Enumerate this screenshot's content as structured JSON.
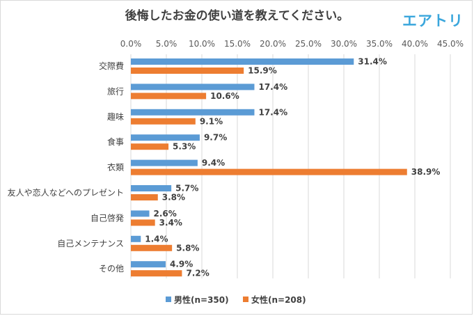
{
  "title": "後悔したお金の使い道を教えてください。",
  "brand": "エアトリ",
  "colors": {
    "male": "#5b9bd5",
    "female": "#ed7d31",
    "grid": "#d9d9d9"
  },
  "chart_data": {
    "type": "bar",
    "orientation": "horizontal",
    "title": "後悔したお金の使い道を教えてください。",
    "categories": [
      "交際費",
      "旅行",
      "趣味",
      "食事",
      "衣類",
      "友人や恋人などへのプレゼント",
      "自己啓発",
      "自己メンテナンス",
      "その他"
    ],
    "series": [
      {
        "name": "男性(n=350)",
        "values": [
          31.4,
          17.4,
          17.4,
          9.7,
          9.4,
          5.7,
          2.6,
          1.4,
          4.9
        ],
        "labels": [
          "31.4%",
          "17.4%",
          "17.4%",
          "9.7%",
          "9.4%",
          "5.7%",
          "2.6%",
          "1.4%",
          "4.9%"
        ]
      },
      {
        "name": "女性(n=208)",
        "values": [
          15.9,
          10.6,
          9.1,
          5.3,
          38.9,
          3.8,
          3.4,
          5.8,
          7.2
        ],
        "labels": [
          "15.9%",
          "10.6%",
          "9.1%",
          "5.3%",
          "38.9%",
          "3.8%",
          "3.4%",
          "5.8%",
          "7.2%"
        ]
      }
    ],
    "xlim": [
      0,
      45
    ],
    "xticks": [
      "0.0%",
      "5.0%",
      "10.0%",
      "15.0%",
      "20.0%",
      "25.0%",
      "30.0%",
      "35.0%",
      "40.0%",
      "45.0%"
    ],
    "grid": true,
    "legend_position": "bottom"
  }
}
